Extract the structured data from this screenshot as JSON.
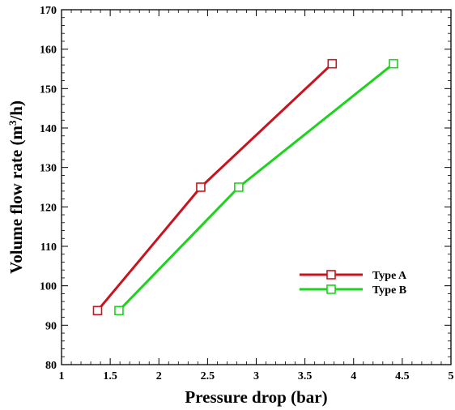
{
  "chart_data": {
    "type": "line",
    "title": "",
    "xlabel": "Pressure drop (bar)",
    "ylabel": "Volume flow rate (m3/h)",
    "ylabel_parts": {
      "before": "Volume flow rate (m",
      "sup": "3",
      "after": "/h)"
    },
    "xlim": [
      1,
      5
    ],
    "ylim": [
      80,
      170
    ],
    "xticks": [
      1,
      1.5,
      2,
      2.5,
      3,
      3.5,
      4,
      4.5,
      5
    ],
    "xtick_labels": [
      "1",
      "1.5",
      "2",
      "2.5",
      "3",
      "3.5",
      "4",
      "4.5",
      "5"
    ],
    "yticks": [
      80,
      90,
      100,
      110,
      120,
      130,
      140,
      150,
      160,
      170
    ],
    "ytick_labels": [
      "80",
      "90",
      "100",
      "110",
      "120",
      "130",
      "140",
      "150",
      "160",
      "170"
    ],
    "grid": false,
    "legend_position": "lower-right",
    "series": [
      {
        "name": "Type A",
        "color": "#c8141e",
        "marker": "square",
        "x": [
          1.37,
          2.43,
          3.78
        ],
        "y": [
          93.7,
          125.0,
          156.3
        ]
      },
      {
        "name": "Type B",
        "color": "#1ed21e",
        "marker": "square",
        "x": [
          1.59,
          2.82,
          4.41
        ],
        "y": [
          93.7,
          125.0,
          156.3
        ]
      }
    ]
  }
}
